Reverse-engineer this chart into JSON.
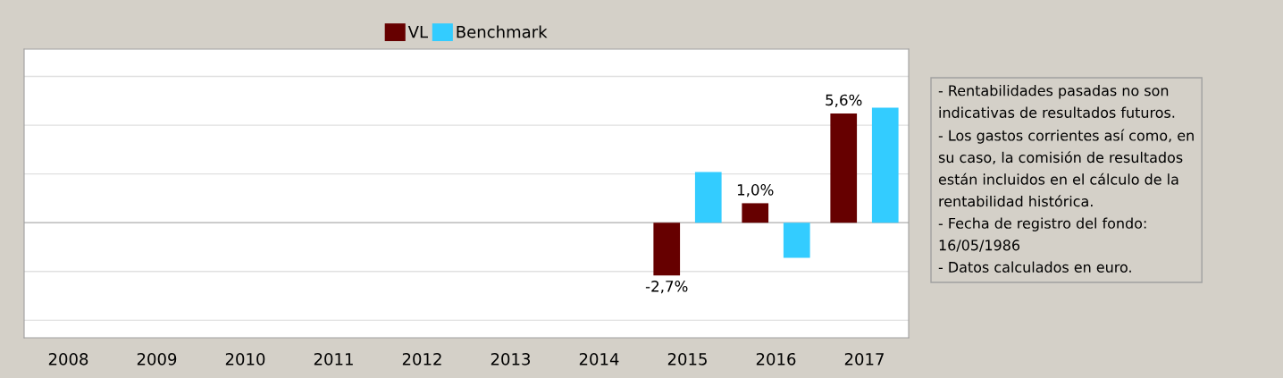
{
  "chart_data": {
    "type": "bar",
    "categories": [
      "2008",
      "2009",
      "2010",
      "2011",
      "2012",
      "2013",
      "2014",
      "2015",
      "2016",
      "2017"
    ],
    "series": [
      {
        "name": "VL",
        "color": "#660000",
        "values": [
          null,
          null,
          null,
          null,
          null,
          null,
          null,
          -2.7,
          1.0,
          5.6
        ],
        "value_labels": [
          null,
          null,
          null,
          null,
          null,
          null,
          null,
          "-2,7%",
          "1,0%",
          "5,6%"
        ]
      },
      {
        "name": "Benchmark",
        "color": "#33ccff",
        "values": [
          null,
          null,
          null,
          null,
          null,
          null,
          null,
          2.6,
          -1.8,
          5.9
        ]
      }
    ],
    "ylim": [
      -5.9,
      8.9
    ],
    "yticks": [
      {
        "value": -5,
        "label": null
      },
      {
        "value": -2.5,
        "label": null
      },
      {
        "value": 0,
        "label": null
      },
      {
        "value": 2.5,
        "label": null
      },
      {
        "value": 5,
        "label": null
      },
      {
        "value": 7.5,
        "label": null
      }
    ],
    "tick_labels": "x",
    "grid": "y",
    "legend": "top",
    "annotations": [
      "- Rentabilidades pasadas no son\nindicativas de resultados futuros.\n- Los gastos corrientes así como, en\nsu caso, la comisión de resultados\nestán incluidos en el cálculo de la\nrentabilidad histórica.\n- Fecha de registro del fondo:\n16/05/1986\n- Datos calculados en euro."
    ]
  }
}
